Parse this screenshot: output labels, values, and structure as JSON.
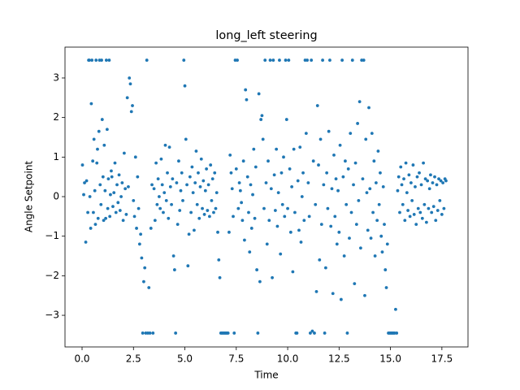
{
  "chart_data": {
    "type": "scatter",
    "title": "long_left steering",
    "xlabel": "Time",
    "ylabel": "Angle Setpoint",
    "color": "#1f77b4",
    "xlim": [
      -0.83,
      18.77
    ],
    "ylim": [
      -3.8,
      3.78
    ],
    "xticks": [
      {
        "value": 0,
        "label": "0.0"
      },
      2.5,
      {
        "value": 5,
        "label": "5.0"
      },
      7.5,
      {
        "value": 10,
        "label": "10.0"
      },
      12.5,
      {
        "value": 15,
        "label": "15.0"
      },
      17.5
    ],
    "yticks": [
      {
        "value": -3,
        "label": "−3"
      },
      {
        "value": -2,
        "label": "−2"
      },
      {
        "value": -1,
        "label": "−1"
      },
      0,
      1,
      2,
      3
    ],
    "x": [
      0.02,
      0.08,
      0.12,
      0.18,
      0.22,
      0.28,
      0.32,
      0.35,
      0.38,
      0.42,
      0.45,
      0.48,
      0.52,
      0.55,
      0.58,
      0.62,
      0.65,
      0.68,
      0.72,
      0.75,
      0.78,
      0.82,
      0.85,
      0.88,
      0.92,
      0.95,
      0.98,
      1.02,
      1.05,
      1.08,
      1.12,
      1.15,
      1.18,
      1.22,
      1.25,
      1.28,
      1.32,
      1.35,
      1.38,
      1.42,
      1.45,
      1.5,
      1.55,
      1.6,
      1.65,
      1.7,
      1.75,
      1.8,
      1.85,
      1.9,
      1.95,
      2.0,
      2.05,
      2.1,
      2.15,
      2.2,
      2.25,
      2.3,
      2.35,
      2.4,
      2.45,
      2.5,
      2.55,
      2.6,
      2.65,
      2.7,
      2.75,
      2.8,
      2.85,
      2.9,
      2.95,
      3.0,
      3.05,
      3.1,
      3.15,
      3.2,
      3.25,
      3.3,
      3.35,
      3.4,
      3.45,
      3.5,
      3.55,
      3.6,
      3.65,
      3.7,
      3.75,
      3.8,
      3.85,
      3.9,
      3.95,
      4.0,
      4.05,
      4.1,
      4.15,
      4.2,
      4.25,
      4.3,
      4.35,
      4.4,
      4.45,
      4.5,
      4.55,
      4.6,
      4.65,
      4.7,
      4.75,
      4.8,
      4.85,
      4.9,
      4.95,
      5.0,
      5.05,
      5.1,
      5.15,
      5.2,
      5.25,
      5.3,
      5.35,
      5.4,
      5.45,
      5.5,
      5.55,
      5.6,
      5.65,
      5.7,
      5.75,
      5.8,
      5.85,
      5.9,
      5.95,
      6.0,
      6.05,
      6.1,
      6.15,
      6.2,
      6.25,
      6.3,
      6.35,
      6.4,
      6.45,
      6.5,
      6.55,
      6.6,
      6.65,
      6.7,
      6.75,
      6.8,
      6.85,
      6.9,
      6.95,
      7.0,
      7.05,
      7.1,
      7.15,
      7.2,
      7.25,
      7.3,
      7.35,
      7.4,
      7.45,
      7.5,
      7.55,
      7.6,
      7.65,
      7.7,
      7.75,
      7.8,
      7.85,
      7.9,
      7.95,
      8.0,
      8.05,
      8.1,
      8.15,
      8.2,
      8.25,
      8.3,
      8.35,
      8.4,
      8.45,
      8.5,
      8.55,
      8.6,
      8.65,
      8.7,
      8.75,
      8.8,
      8.85,
      8.9,
      8.95,
      9.0,
      9.05,
      9.1,
      9.15,
      9.2,
      9.25,
      9.3,
      9.35,
      9.4,
      9.45,
      9.5,
      9.55,
      9.6,
      9.65,
      9.7,
      9.75,
      9.8,
      9.85,
      9.9,
      9.95,
      10.0,
      10.05,
      10.1,
      10.15,
      10.2,
      10.25,
      10.3,
      10.35,
      10.4,
      10.45,
      10.5,
      10.55,
      10.6,
      10.65,
      10.7,
      10.75,
      10.8,
      10.85,
      10.9,
      10.95,
      11.0,
      11.05,
      11.1,
      11.15,
      11.2,
      11.25,
      11.3,
      11.35,
      11.4,
      11.45,
      11.5,
      11.55,
      11.6,
      11.65,
      11.7,
      11.75,
      11.8,
      11.85,
      11.9,
      11.95,
      12.0,
      12.05,
      12.1,
      12.15,
      12.2,
      12.25,
      12.3,
      12.35,
      12.4,
      12.45,
      12.5,
      12.55,
      12.6,
      12.65,
      12.7,
      12.75,
      12.8,
      12.85,
      12.9,
      12.95,
      13.0,
      13.05,
      13.1,
      13.15,
      13.2,
      13.25,
      13.3,
      13.35,
      13.4,
      13.45,
      13.5,
      13.55,
      13.6,
      13.65,
      13.7,
      13.75,
      13.8,
      13.85,
      13.9,
      13.95,
      14.0,
      14.05,
      14.1,
      14.15,
      14.2,
      14.25,
      14.3,
      14.35,
      14.4,
      14.45,
      14.5,
      14.55,
      14.6,
      14.65,
      14.7,
      14.75,
      14.8,
      14.85,
      14.9,
      14.95,
      15.0,
      15.05,
      15.1,
      15.15,
      15.2,
      15.25,
      15.3,
      15.35,
      15.4,
      15.45,
      15.5,
      15.55,
      15.6,
      15.65,
      15.7,
      15.75,
      15.8,
      15.85,
      15.9,
      15.95,
      16.0,
      16.05,
      16.1,
      16.15,
      16.2,
      16.25,
      16.3,
      16.35,
      16.4,
      16.45,
      16.5,
      16.55,
      16.6,
      16.65,
      16.7,
      16.75,
      16.8,
      16.85,
      16.9,
      16.95,
      17.0,
      17.05,
      17.1,
      17.15,
      17.2,
      17.25,
      17.3,
      17.35,
      17.4,
      17.45,
      17.5,
      17.55,
      17.6,
      17.65,
      17.7
    ],
    "y": [
      0.8,
      0.05,
      0.35,
      -1.15,
      0.4,
      -0.4,
      3.45,
      3.45,
      0.0,
      -0.8,
      2.35,
      3.45,
      0.9,
      -0.4,
      1.45,
      0.15,
      -0.7,
      3.45,
      0.85,
      1.2,
      -0.55,
      1.65,
      3.45,
      0.3,
      -0.2,
      3.45,
      1.95,
      0.5,
      -0.6,
      1.3,
      0.15,
      -0.55,
      3.45,
      1.7,
      -0.3,
      0.45,
      3.45,
      -0.5,
      0.05,
      0.65,
      0.5,
      -0.25,
      0.1,
      0.85,
      -0.4,
      0.3,
      -0.15,
      0.55,
      -0.35,
      0.0,
      0.35,
      -0.6,
      1.1,
      0.2,
      -0.45,
      2.5,
      0.25,
      3.0,
      2.85,
      2.15,
      2.3,
      -0.1,
      -0.5,
      1.0,
      -0.8,
      0.5,
      -0.3,
      -1.2,
      -0.95,
      -1.55,
      -3.45,
      -2.15,
      -1.8,
      -3.45,
      3.45,
      -3.45,
      -2.3,
      -3.45,
      -0.8,
      0.3,
      -3.45,
      0.2,
      -0.6,
      0.85,
      -0.2,
      0.45,
      0.0,
      -0.3,
      0.95,
      0.3,
      -0.4,
      0.1,
      1.3,
      -0.1,
      0.6,
      -0.55,
      1.25,
      0.25,
      -0.2,
      0.45,
      -1.5,
      -1.85,
      -3.45,
      0.35,
      -0.7,
      0.9,
      -0.35,
      0.15,
      0.6,
      -0.1,
      3.45,
      2.8,
      1.45,
      0.3,
      -1.75,
      -0.95,
      0.5,
      -0.4,
      0.75,
      0.1,
      -0.85,
      0.35,
      1.15,
      -0.2,
      0.6,
      -0.55,
      0.25,
      0.95,
      -0.3,
      0.4,
      -0.45,
      0.15,
      0.7,
      -0.35,
      0.3,
      -0.5,
      0.8,
      -0.1,
      0.45,
      -0.4,
      0.6,
      -0.3,
      0.1,
      -0.9,
      -1.6,
      -2.05,
      -3.45,
      -3.45,
      -3.45,
      -3.45,
      -3.45,
      -3.45,
      -3.45,
      -3.45,
      -0.9,
      1.05,
      0.6,
      0.2,
      -0.5,
      -3.45,
      3.45,
      0.7,
      3.45,
      -0.3,
      0.35,
      0.15,
      -0.15,
      -0.6,
      0.9,
      -1.1,
      2.7,
      2.45,
      0.5,
      -0.4,
      -1.4,
      0.3,
      -0.8,
      0.05,
      1.2,
      -0.55,
      0.75,
      -1.85,
      -3.45,
      2.6,
      -2.15,
      1.95,
      2.05,
      1.45,
      -0.3,
      3.45,
      0.35,
      -1.2,
      0.9,
      -0.6,
      3.45,
      0.2,
      -2.05,
      3.45,
      0.55,
      -0.35,
      1.2,
      -0.75,
      0.1,
      3.45,
      -1.45,
      0.6,
      -0.2,
      1.0,
      -0.5,
      3.45,
      1.95,
      -0.3,
      3.45,
      0.7,
      -0.9,
      0.25,
      -1.9,
      1.2,
      -0.4,
      -3.45,
      -3.45,
      0.4,
      -0.85,
      1.25,
      -1.15,
      0.0,
      0.6,
      -0.6,
      3.45,
      1.6,
      3.45,
      0.35,
      -0.5,
      -3.45,
      3.45,
      -3.4,
      0.9,
      -3.45,
      -0.2,
      -2.4,
      2.3,
      0.8,
      -1.6,
      1.45,
      -0.7,
      3.45,
      0.3,
      -3.45,
      -1.8,
      0.6,
      -0.3,
      1.65,
      3.45,
      -0.75,
      0.2,
      -2.45,
      1.05,
      -0.5,
      0.45,
      -1.2,
      0.15,
      -0.9,
      1.3,
      -2.6,
      3.45,
      0.5,
      -1.5,
      0.9,
      -0.2,
      -3.45,
      0.7,
      -1.05,
      1.6,
      -0.4,
      3.45,
      0.3,
      -2.2,
      0.85,
      -0.7,
      1.85,
      -0.1,
      2.4,
      -1.3,
      3.45,
      0.45,
      3.45,
      -2.5,
      1.45,
      0.1,
      -0.85,
      2.25,
      0.2,
      -1.05,
      1.6,
      -0.4,
      0.9,
      -1.5,
      0.35,
      -0.6,
      1.15,
      -0.2,
      0.6,
      -1.0,
      -1.4,
      0.25,
      -0.7,
      -1.85,
      -2.3,
      -1.2,
      -3.45,
      -3.45,
      -3.45,
      -3.45,
      -3.45,
      -3.45,
      -3.45,
      -2.85,
      -3.45,
      0.15,
      0.5,
      -0.4,
      0.75,
      0.3,
      -0.2,
      0.45,
      -0.6,
      0.85,
      0.1,
      -0.35,
      0.55,
      -0.5,
      0.35,
      -0.1,
      0.8,
      -0.45,
      0.25,
      -0.7,
      0.5,
      -0.3,
      0.6,
      -0.4,
      0.3,
      -0.55,
      0.85,
      -0.2,
      0.45,
      -0.65,
      0.4,
      -0.3,
      0.2,
      0.55,
      -0.4,
      0.35,
      -0.25,
      0.5,
      -0.6,
      0.3,
      -0.35,
      0.45,
      -0.1,
      0.4,
      -0.45,
      0.35,
      -0.3,
      0.45,
      0.4
    ]
  }
}
